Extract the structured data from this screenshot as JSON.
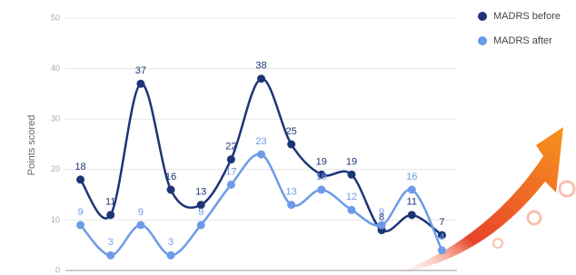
{
  "chart_data": {
    "type": "line",
    "y_label": "Points scored",
    "categories": [
      null,
      null,
      null,
      null,
      null,
      null,
      null,
      null,
      null,
      null,
      null,
      null,
      null
    ],
    "series": [
      {
        "name": "MADRS before",
        "color": "#1d3577",
        "values": [
          18,
          11,
          37,
          16,
          13,
          22,
          38,
          25,
          19,
          19,
          8,
          11,
          7
        ]
      },
      {
        "name": "MADRS after",
        "color": "#6d9be8",
        "values": [
          9,
          3,
          9,
          3,
          9,
          17,
          23,
          13,
          16,
          12,
          9,
          16,
          4
        ]
      }
    ],
    "ylim": [
      0,
      50
    ],
    "yticks": [
      0,
      10,
      20,
      30,
      40,
      50
    ],
    "grid": true,
    "smooth": true,
    "legend": "right"
  }
}
